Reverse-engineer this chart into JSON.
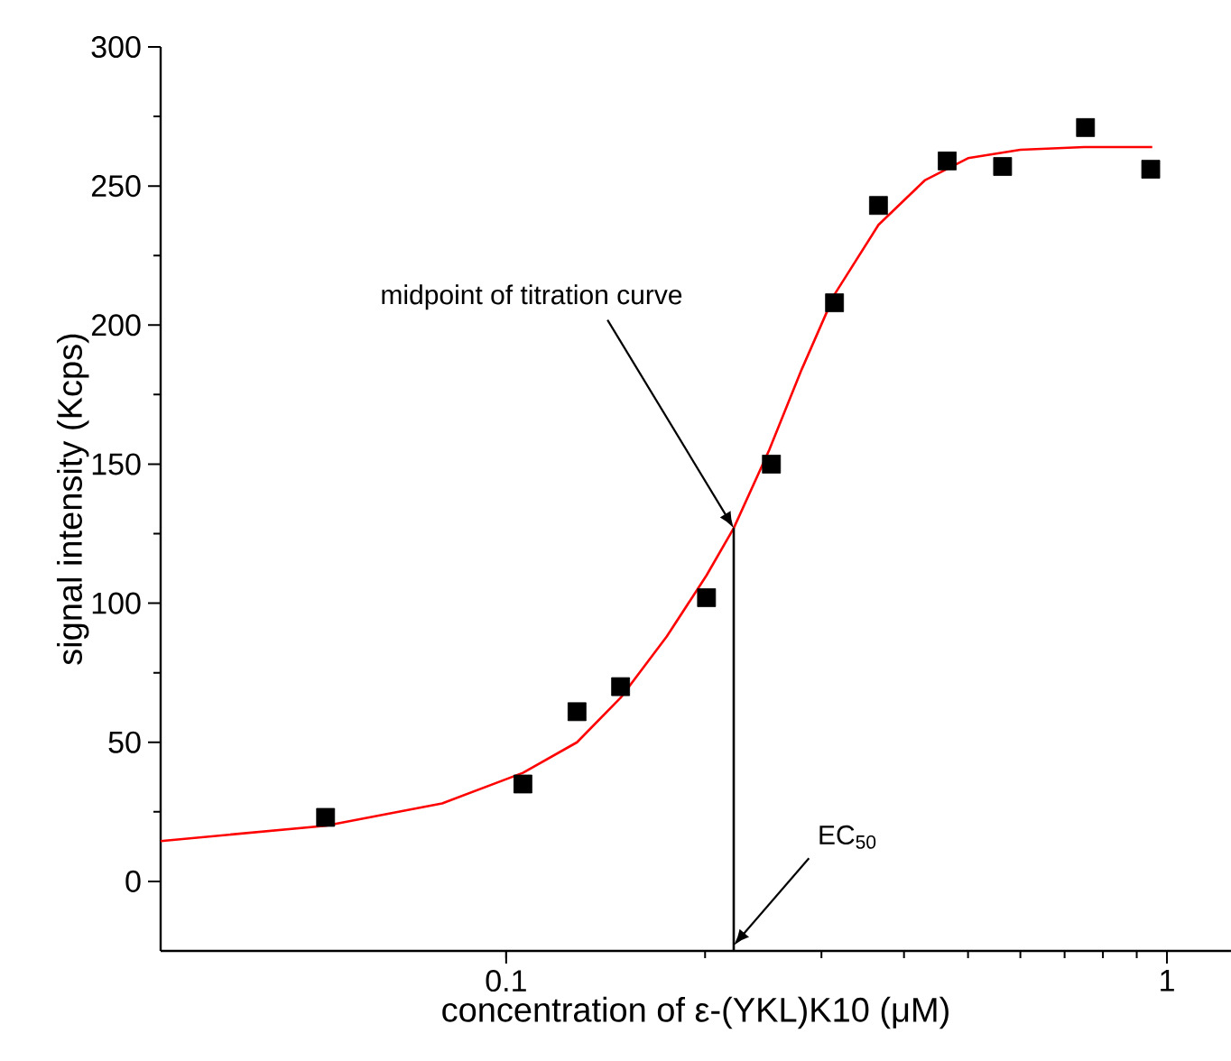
{
  "chart_data": {
    "type": "scatter",
    "xlabel": "concentration of ε-(YKL)K10 (μM)",
    "ylabel": "signal intensity (Kcps)",
    "log": "x",
    "xlim": [
      0.03,
      1.25
    ],
    "xticks": [
      0.1,
      1
    ],
    "ylim": [
      -25,
      300
    ],
    "yticks": [
      0,
      50,
      100,
      150,
      200,
      250,
      300
    ],
    "series": [
      {
        "type": "line",
        "color": "#ff0000",
        "marker": "none",
        "x": [
          0.03,
          0.0533,
          0.08,
          0.106,
          0.128,
          0.149,
          0.175,
          0.201,
          0.221,
          0.25,
          0.28,
          0.314,
          0.366,
          0.43,
          0.5,
          0.6,
          0.75,
          0.95
        ],
        "values": [
          14.5,
          20,
          28,
          39,
          50,
          66,
          88,
          110,
          127,
          155,
          184,
          211,
          236,
          252,
          260,
          263,
          264,
          264
        ]
      },
      {
        "type": "line",
        "color": "#000000",
        "marker": "none",
        "x": [
          0.221,
          0.221
        ],
        "values": [
          -25,
          127
        ]
      },
      {
        "color": "#000000",
        "marker": "square",
        "x": [
          0.0533,
          0.106,
          0.128,
          0.149,
          0.201,
          0.252,
          0.314,
          0.366,
          0.465,
          0.564,
          0.753,
          0.945
        ],
        "values": [
          23,
          35,
          61,
          70,
          102,
          150,
          208,
          243,
          259,
          257,
          271,
          256
        ]
      }
    ],
    "annotations": [
      {
        "text": "midpoint of titration curve",
        "x": 0.221,
        "y": 127
      },
      {
        "text": "EC$_{50}$",
        "x": 0.221,
        "y": -23
      }
    ]
  }
}
